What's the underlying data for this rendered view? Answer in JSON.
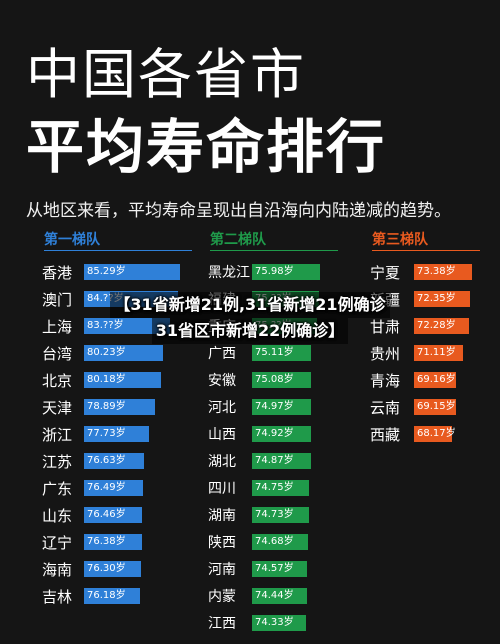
{
  "header": {
    "title_line1": "中国各省市",
    "title_line2": "平均寿命排行",
    "subtitle": "从地区来看，平均寿命呈现出自沿海向内陆递减的趋势。"
  },
  "overlay": {
    "line1": "【31省新增21例,31省新增21例确诊",
    "line2": "31省区市新增22例确诊】"
  },
  "colors": {
    "tier1": "#2f80d8",
    "tier2": "#1f9a4a",
    "tier3": "#e85a1f",
    "background": "#151515"
  },
  "tiers": [
    {
      "header": "第一梯队",
      "items": [
        {
          "name": "香港",
          "value": "85.29岁",
          "fill": 1.0
        },
        {
          "name": "澳门",
          "value": "84.??岁",
          "fill": 0.98
        },
        {
          "name": "上海",
          "value": "83.??岁",
          "fill": 0.9
        },
        {
          "name": "台湾",
          "value": "80.23岁",
          "fill": 0.82
        },
        {
          "name": "北京",
          "value": "80.18岁",
          "fill": 0.8
        },
        {
          "name": "天津",
          "value": "78.89岁",
          "fill": 0.74
        },
        {
          "name": "浙江",
          "value": "77.73岁",
          "fill": 0.68
        },
        {
          "name": "江苏",
          "value": "76.63岁",
          "fill": 0.62
        },
        {
          "name": "广东",
          "value": "76.49岁",
          "fill": 0.61
        },
        {
          "name": "山东",
          "value": "76.46岁",
          "fill": 0.6
        },
        {
          "name": "辽宁",
          "value": "76.38岁",
          "fill": 0.6
        },
        {
          "name": "海南",
          "value": "76.30岁",
          "fill": 0.59
        },
        {
          "name": "吉林",
          "value": "76.18岁",
          "fill": 0.58
        }
      ]
    },
    {
      "header": "第二梯队",
      "items": [
        {
          "name": "黑龙江",
          "value": "75.98岁",
          "fill": 0.9
        },
        {
          "name": "福建",
          "value": "75.??岁",
          "fill": 0.88
        },
        {
          "name": "重庆",
          "value": "75.??岁",
          "fill": 0.86
        },
        {
          "name": "广西",
          "value": "75.11岁",
          "fill": 0.78
        },
        {
          "name": "安徽",
          "value": "75.08岁",
          "fill": 0.78
        },
        {
          "name": "河北",
          "value": "74.97岁",
          "fill": 0.78
        },
        {
          "name": "山西",
          "value": "74.92岁",
          "fill": 0.77
        },
        {
          "name": "湖北",
          "value": "74.87岁",
          "fill": 0.77
        },
        {
          "name": "四川",
          "value": "74.75岁",
          "fill": 0.75
        },
        {
          "name": "湖南",
          "value": "74.73岁",
          "fill": 0.75
        },
        {
          "name": "陕西",
          "value": "74.68岁",
          "fill": 0.74
        },
        {
          "name": "河南",
          "value": "74.57岁",
          "fill": 0.73
        },
        {
          "name": "内蒙",
          "value": "74.44岁",
          "fill": 0.72
        },
        {
          "name": "江西",
          "value": "74.33岁",
          "fill": 0.71
        }
      ]
    },
    {
      "header": "第三梯队",
      "items": [
        {
          "name": "宁夏",
          "value": "73.38岁",
          "fill": 1.0
        },
        {
          "name": "新疆",
          "value": "72.35岁",
          "fill": 0.96
        },
        {
          "name": "甘肃",
          "value": "72.28岁",
          "fill": 0.95
        },
        {
          "name": "贵州",
          "value": "71.11岁",
          "fill": 0.85
        },
        {
          "name": "青海",
          "value": "69.16岁",
          "fill": 0.72
        },
        {
          "name": "云南",
          "value": "69.15岁",
          "fill": 0.72
        },
        {
          "name": "西藏",
          "value": "68.17岁",
          "fill": 0.66
        }
      ]
    }
  ]
}
